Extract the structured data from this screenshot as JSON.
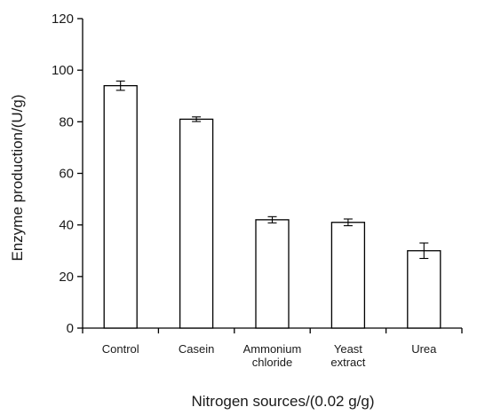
{
  "chart_data": {
    "type": "bar",
    "title": "",
    "xlabel": "Nitrogen sources/(0.02 g/g)",
    "ylabel": "Enzyme production/(U/g)",
    "ylim": [
      0,
      120
    ],
    "yticks": [
      0,
      20,
      40,
      60,
      80,
      100,
      120
    ],
    "categories": [
      [
        "Control"
      ],
      [
        "Casein"
      ],
      [
        "Ammonium",
        "chloride"
      ],
      [
        "Yeast",
        "extract"
      ],
      [
        "Urea"
      ]
    ],
    "values": [
      94,
      81,
      42,
      41,
      30
    ],
    "errors": [
      1.8,
      0.9,
      1.2,
      1.3,
      3.0
    ],
    "bar_fill": "#ffffff",
    "bar_stroke": "#000000",
    "grid": false,
    "legend": "none"
  }
}
